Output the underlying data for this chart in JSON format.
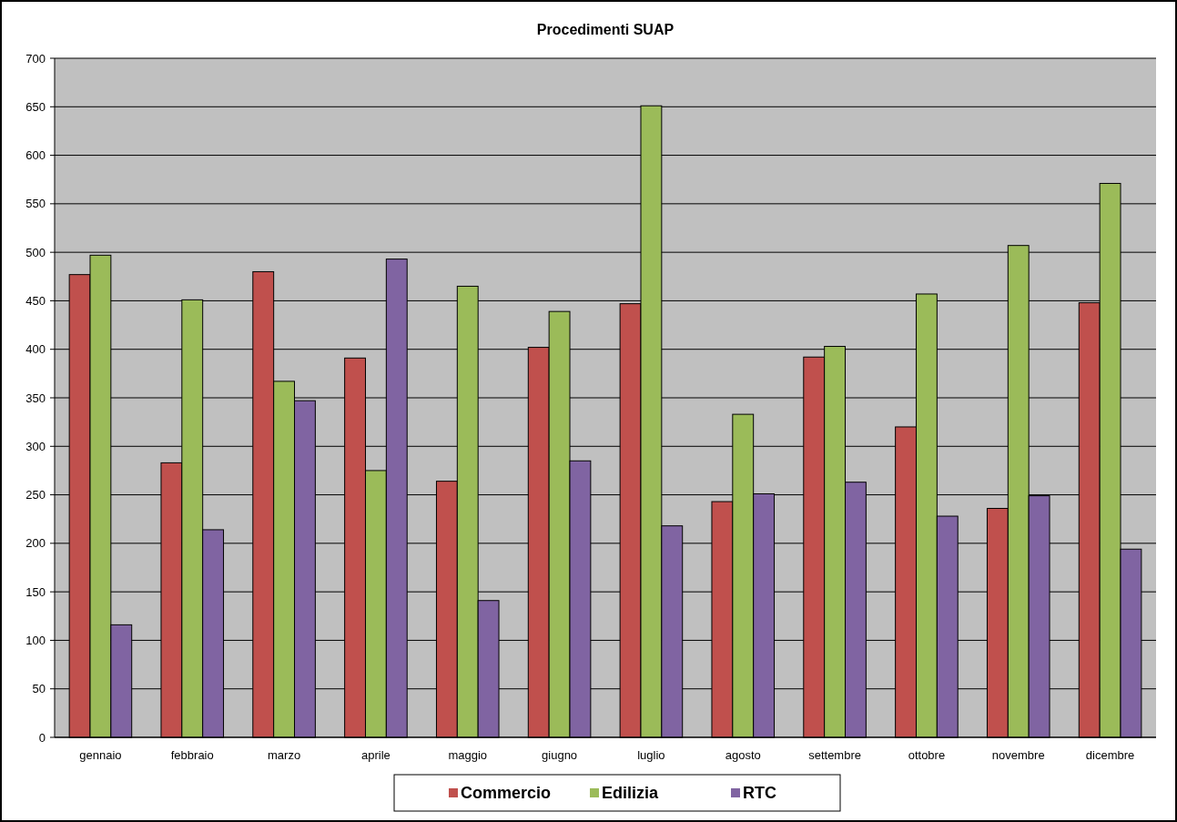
{
  "chart_data": {
    "type": "bar",
    "title": "Procedimenti SUAP",
    "categories": [
      "gennaio",
      "febbraio",
      "marzo",
      "aprile",
      "maggio",
      "giugno",
      "luglio",
      "agosto",
      "settembre",
      "ottobre",
      "novembre",
      "dicembre"
    ],
    "series": [
      {
        "name": "Commercio",
        "color": "#c0504d",
        "values": [
          477,
          283,
          480,
          391,
          264,
          402,
          447,
          243,
          392,
          320,
          236,
          448
        ]
      },
      {
        "name": "Edilizia",
        "color": "#9bbb59",
        "values": [
          497,
          451,
          367,
          275,
          465,
          439,
          651,
          333,
          403,
          457,
          507,
          571
        ]
      },
      {
        "name": "RTC",
        "color": "#8064a2",
        "values": [
          116,
          214,
          347,
          493,
          141,
          285,
          218,
          251,
          263,
          228,
          249,
          194
        ]
      }
    ],
    "ylim": [
      0,
      700
    ],
    "yticks": [
      0,
      50,
      100,
      150,
      200,
      250,
      300,
      350,
      400,
      450,
      500,
      550,
      600,
      650,
      700
    ],
    "grid": "y",
    "legend": "bottom"
  }
}
